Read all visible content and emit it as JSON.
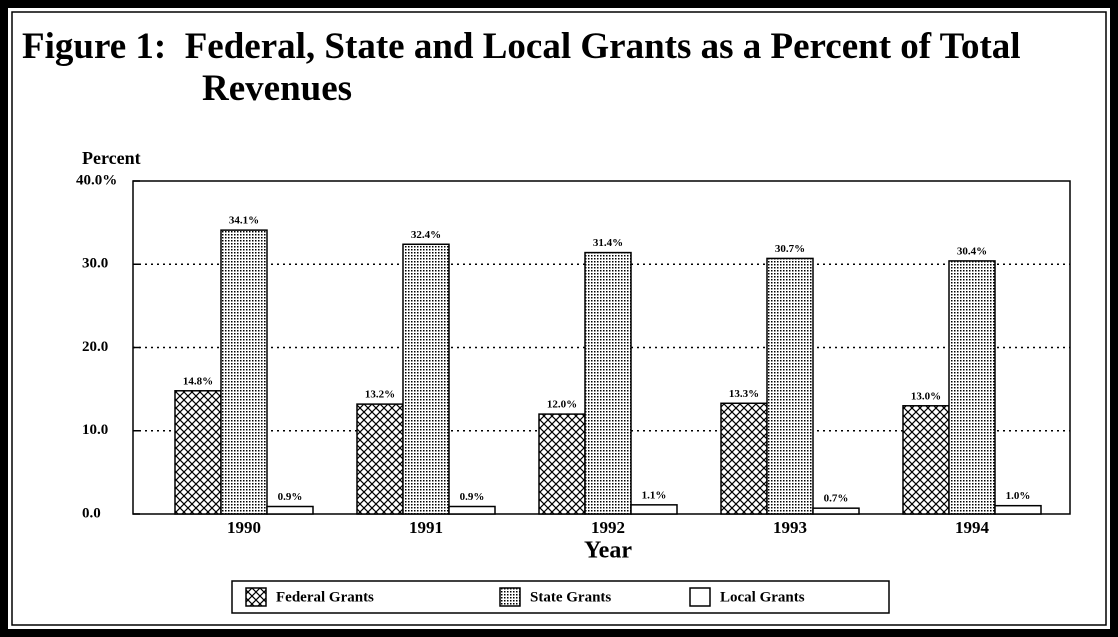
{
  "chart_data": {
    "type": "bar",
    "title": "Figure 1:  Federal, State and Local Grants as a Percent of Total Revenues",
    "y_label": "Percent",
    "x_label": "Year",
    "categories": [
      "1990",
      "1991",
      "1992",
      "1993",
      "1994"
    ],
    "series": [
      {
        "name": "Federal Grants",
        "pattern": "crosshatch",
        "color": "#000000",
        "values": [
          14.8,
          13.2,
          12.0,
          13.3,
          13.0
        ],
        "value_labels": [
          "14.8%",
          "13.2%",
          "12.0%",
          "13.3%",
          "13.0%"
        ]
      },
      {
        "name": "State Grants",
        "pattern": "dots",
        "color": "#000000",
        "values": [
          34.1,
          32.4,
          31.4,
          30.7,
          30.4
        ],
        "value_labels": [
          "34.1%",
          "32.4%",
          "31.4%",
          "30.7%",
          "30.4%"
        ]
      },
      {
        "name": "Local Grants",
        "pattern": "none",
        "color": "#000000",
        "values": [
          0.9,
          0.9,
          1.1,
          0.7,
          1.0
        ],
        "value_labels": [
          "0.9%",
          "0.9%",
          "1.1%",
          "0.7%",
          "1.0%"
        ]
      }
    ],
    "ylim": [
      0,
      40
    ],
    "yticks": [
      {
        "value": 0,
        "label": "0.0"
      },
      {
        "value": 10,
        "label": "10.0"
      },
      {
        "value": 20,
        "label": "20.0"
      },
      {
        "value": 30,
        "label": "30.0"
      },
      {
        "value": 40,
        "label": "40.0%"
      }
    ],
    "grid": true,
    "legend": "bottom"
  }
}
